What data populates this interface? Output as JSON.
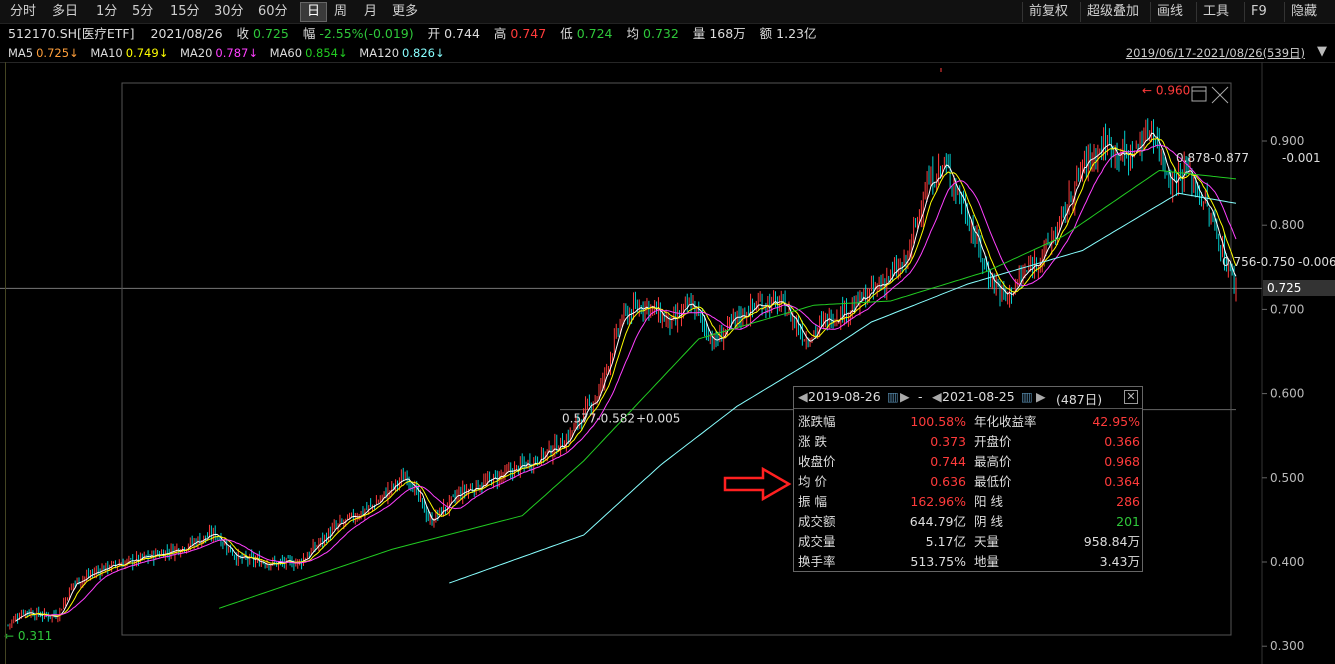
{
  "toolbar": {
    "left": [
      "分时",
      "多日",
      "1分",
      "5分",
      "15分",
      "30分",
      "60分",
      "日",
      "周",
      "月",
      "更多"
    ],
    "active": "日",
    "right": [
      "前复权",
      "超级叠加",
      "画线",
      "工具",
      "F9",
      "隐藏"
    ]
  },
  "quote": {
    "symbol": "512170.SH[医疗ETF]",
    "date": "2021/08/26",
    "close_label": "收",
    "close": "0.725",
    "change_label": "幅",
    "change": "-2.55%(-0.019)",
    "open_label": "开",
    "open": "0.744",
    "high_label": "高",
    "high": "0.747",
    "low_label": "低",
    "low": "0.724",
    "avg_label": "均",
    "avg": "0.732",
    "vol_label": "量",
    "vol": "168万",
    "amt_label": "额",
    "amt": "1.23亿"
  },
  "ma": {
    "ma5": "MA5",
    "ma5_val": "0.725↓",
    "ma10": "MA10",
    "ma10_val": "0.749↓",
    "ma20": "MA20",
    "ma20_val": "0.787↓",
    "ma60": "MA60",
    "ma60_val": "0.854↓",
    "ma120": "MA120",
    "ma120_val": "0.826↓"
  },
  "range": "2019/06/17-2021/08/26(539日)",
  "colors": {
    "up": "#ff3b3b",
    "down": "#00d0d0",
    "ma5": "#ffffff",
    "ma10": "#ffff00",
    "ma20": "#ff40ff",
    "ma60": "#22cc22",
    "ma120": "#88ffff"
  },
  "chart_data": {
    "type": "candlestick",
    "ylim": [
      0.29,
      0.98
    ],
    "y_ticks": [
      "0.900",
      "0.800",
      "0.700",
      "0.600",
      "0.500",
      "0.400",
      "0.300"
    ],
    "current_price": "0.725",
    "annotations": {
      "high": "0.960",
      "low": "0.311",
      "seg1": "0.577-0.582",
      "seg1_delta": "+0.005",
      "seg2": "0.878-0.877",
      "seg2_delta": "-0.001",
      "seg3": "0.756-0.750",
      "seg3_delta": "-0.006"
    },
    "anchors": [
      [
        0,
        0.325
      ],
      [
        8,
        0.342
      ],
      [
        20,
        0.336
      ],
      [
        26,
        0.338
      ],
      [
        34,
        0.375
      ],
      [
        50,
        0.393
      ],
      [
        70,
        0.404
      ],
      [
        90,
        0.417
      ],
      [
        108,
        0.434
      ],
      [
        120,
        0.404
      ],
      [
        140,
        0.398
      ],
      [
        152,
        0.4
      ],
      [
        170,
        0.44
      ],
      [
        190,
        0.467
      ],
      [
        208,
        0.504
      ],
      [
        220,
        0.448
      ],
      [
        236,
        0.482
      ],
      [
        260,
        0.505
      ],
      [
        276,
        0.523
      ],
      [
        290,
        0.543
      ],
      [
        308,
        0.602
      ],
      [
        320,
        0.69
      ],
      [
        332,
        0.707
      ],
      [
        346,
        0.682
      ],
      [
        356,
        0.708
      ],
      [
        368,
        0.66
      ],
      [
        380,
        0.69
      ],
      [
        392,
        0.708
      ],
      [
        404,
        0.705
      ],
      [
        416,
        0.665
      ],
      [
        428,
        0.69
      ],
      [
        440,
        0.702
      ],
      [
        458,
        0.736
      ],
      [
        468,
        0.755
      ],
      [
        478,
        0.845
      ],
      [
        488,
        0.872
      ],
      [
        498,
        0.825
      ],
      [
        510,
        0.745
      ],
      [
        520,
        0.713
      ],
      [
        528,
        0.738
      ],
      [
        540,
        0.768
      ],
      [
        548,
        0.8
      ],
      [
        560,
        0.87
      ],
      [
        572,
        0.898
      ],
      [
        584,
        0.88
      ],
      [
        596,
        0.916
      ],
      [
        606,
        0.852
      ],
      [
        614,
        0.867
      ],
      [
        624,
        0.825
      ],
      [
        632,
        0.776
      ],
      [
        640,
        0.725
      ]
    ],
    "ma60_anchors": [
      [
        110,
        0.345
      ],
      [
        200,
        0.415
      ],
      [
        268,
        0.455
      ],
      [
        300,
        0.52
      ],
      [
        360,
        0.665
      ],
      [
        420,
        0.705
      ],
      [
        460,
        0.71
      ],
      [
        510,
        0.745
      ],
      [
        550,
        0.787
      ],
      [
        600,
        0.865
      ],
      [
        640,
        0.855
      ]
    ],
    "ma120_anchors": [
      [
        230,
        0.375
      ],
      [
        300,
        0.432
      ],
      [
        340,
        0.515
      ],
      [
        380,
        0.585
      ],
      [
        420,
        0.64
      ],
      [
        450,
        0.685
      ],
      [
        500,
        0.73
      ],
      [
        560,
        0.77
      ],
      [
        610,
        0.838
      ],
      [
        640,
        0.826
      ]
    ],
    "total_bars": 640
  },
  "stats": {
    "start": "2019-08-26",
    "end": "2021-08-25",
    "days": "(487日)",
    "rows": [
      {
        "k1": "涨跌幅",
        "v1": "100.58%",
        "c1": "red",
        "k2": "年化收益率",
        "v2": "42.95%",
        "c2": "red"
      },
      {
        "k1": "涨  跌",
        "v1": "0.373",
        "c1": "red",
        "k2": "开盘价",
        "v2": "0.366",
        "c2": "red"
      },
      {
        "k1": "收盘价",
        "v1": "0.744",
        "c1": "red",
        "k2": "最高价",
        "v2": "0.968",
        "c2": "red"
      },
      {
        "k1": "均  价",
        "v1": "0.636",
        "c1": "red",
        "k2": "最低价",
        "v2": "0.364",
        "c2": "red"
      },
      {
        "k1": "振  幅",
        "v1": "162.96%",
        "c1": "red",
        "k2": "阳  线",
        "v2": "286",
        "c2": "red"
      },
      {
        "k1": "成交额",
        "v1": "644.79亿",
        "c1": "white",
        "k2": "阴  线",
        "v2": "201",
        "c2": "green"
      },
      {
        "k1": "成交量",
        "v1": "5.17亿",
        "c1": "white",
        "k2": "天量",
        "v2": "958.84万",
        "c2": "white"
      },
      {
        "k1": "换手率",
        "v1": "513.75%",
        "c1": "white",
        "k2": "地量",
        "v2": "3.43万",
        "c2": "white"
      }
    ]
  }
}
